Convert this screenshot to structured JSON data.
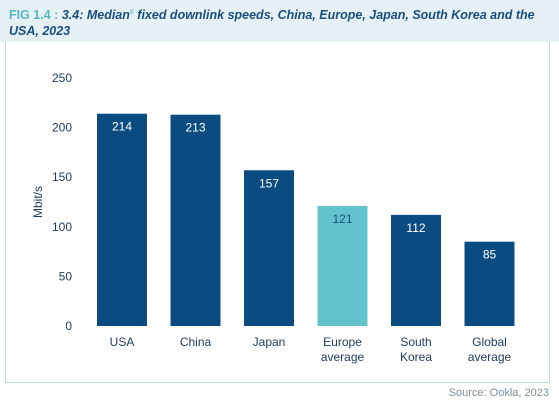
{
  "figure": {
    "prefix": "FIG 1.4 :",
    "title": "3.4: Median",
    "title_superscript": "6",
    "title_rest": "fixed downlink speeds, China, Europe, Japan, South Korea and the USA, 2023",
    "source": "Source: Ookla, 2023"
  },
  "colors": {
    "primary_bar": "#0a4c82",
    "highlight_bar": "#63c3cc",
    "label_light": "#ffffff",
    "label_on_highlight": "#1a4e80",
    "header_bg": "#e6f1f5"
  },
  "chart_data": {
    "type": "bar",
    "ylabel": "Mbit/s",
    "xlabel": "",
    "ylim": [
      0,
      250
    ],
    "yticks": [
      0,
      50,
      100,
      150,
      200,
      250
    ],
    "grid": false,
    "categories": [
      [
        "USA"
      ],
      [
        "China"
      ],
      [
        "Japan"
      ],
      [
        "Europe",
        "average"
      ],
      [
        "South",
        "Korea"
      ],
      [
        "Global",
        "average"
      ]
    ],
    "values": [
      214,
      213,
      157,
      121,
      112,
      85
    ],
    "highlight_index": 3
  }
}
